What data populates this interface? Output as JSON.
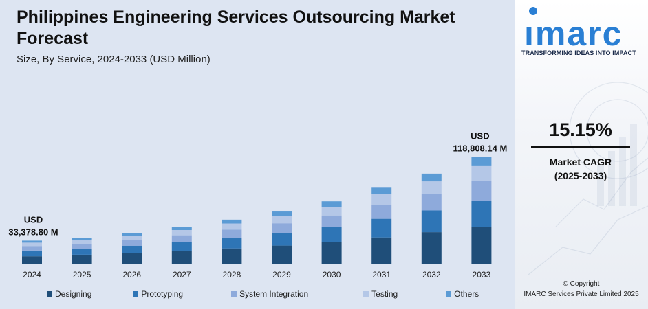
{
  "title": "Philippines Engineering Services Outsourcing Market Forecast",
  "subtitle": "Size, By Service, 2024-2033 (USD Million)",
  "chart_data": {
    "type": "bar",
    "stacked": true,
    "categories": [
      "2024",
      "2025",
      "2026",
      "2027",
      "2028",
      "2029",
      "2030",
      "2031",
      "2032",
      "2033"
    ],
    "series": [
      {
        "name": "Designing",
        "color": "#1f4e79",
        "values": [
          5452,
          6596,
          7992,
          9471,
          11212,
          13292,
          15880,
          19278,
          23103,
          27086
        ]
      },
      {
        "name": "Prototyping",
        "color": "#2e75b6",
        "values": [
          4179,
          4179,
          5221,
          6290,
          7708,
          9218,
          11112,
          13631,
          15935,
          18944
        ]
      },
      {
        "name": "System Integration",
        "color": "#8eaadb",
        "values": [
          3346,
          3611,
          4213,
          5065,
          6020,
          7096,
          8386,
          10223,
          12228,
          14680
        ]
      },
      {
        "name": "Testing",
        "color": "#b4c7e7",
        "values": [
          2442,
          2727,
          3203,
          3843,
          4497,
          5275,
          6382,
          7758,
          9102,
          10833
        ]
      },
      {
        "name": "Others",
        "color": "#5b9bd5",
        "values": [
          1497,
          1713,
          2019,
          2331,
          2850,
          3360,
          3953,
          4840,
          5640,
          6694
        ]
      }
    ],
    "annotations": [
      {
        "category": "2024",
        "line1": "USD",
        "line2": "33,378.80 M"
      },
      {
        "category": "2033",
        "line1": "USD",
        "line2": "118,808.14 M"
      }
    ],
    "legend_position": "bottom",
    "grid": false
  },
  "brand": {
    "logo_text": "imarc",
    "tagline": "TRANSFORMING IDEAS INTO IMPACT",
    "accent": "#2a7fd4"
  },
  "cagr": {
    "value": "15.15%",
    "label_line1": "Market CAGR",
    "label_line2": "(2025-2033)"
  },
  "copyright": {
    "line1": "© Copyright",
    "line2": "IMARC Services Private Limited 2025"
  }
}
